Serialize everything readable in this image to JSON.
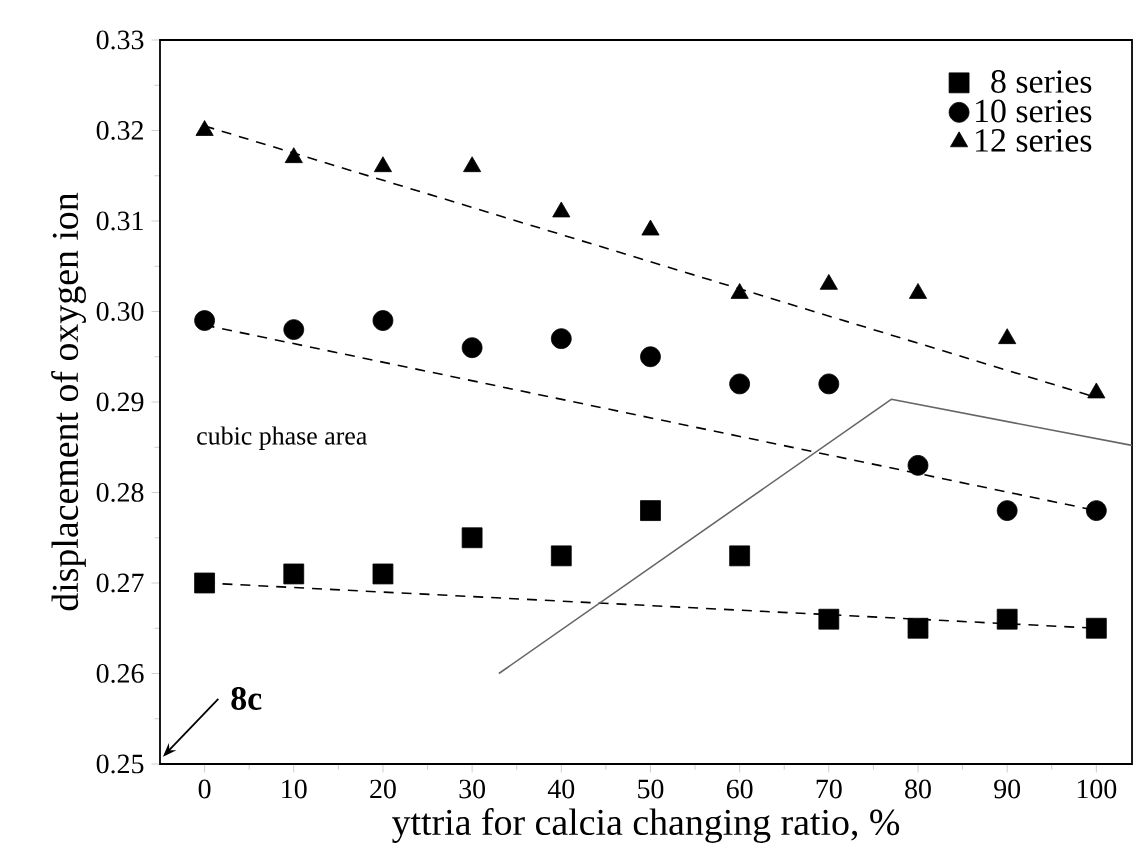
{
  "chart_data": {
    "type": "scatter",
    "xlabel": "yttria for calcia changing ratio, %",
    "ylabel": "displacement of oxygen ion",
    "xlim": [
      -5,
      104
    ],
    "ylim": [
      0.25,
      0.33
    ],
    "xticks": [
      0,
      10,
      20,
      30,
      40,
      50,
      60,
      70,
      80,
      90,
      100
    ],
    "yticks": [
      {
        "value": 0.25,
        "label": "0.25"
      },
      {
        "value": 0.26,
        "label": "0.26"
      },
      {
        "value": 0.27,
        "label": "0.27"
      },
      {
        "value": 0.28,
        "label": "0.28"
      },
      {
        "value": 0.29,
        "label": "0.29"
      },
      {
        "value": 0.3,
        "label": "0.30"
      },
      {
        "value": 0.31,
        "label": "0.31"
      },
      {
        "value": 0.32,
        "label": "0.32"
      },
      {
        "value": 0.33,
        "label": "0.33"
      }
    ],
    "legend": "top right",
    "grid": false,
    "annotations": [
      "cubic phase area",
      "8c"
    ],
    "series": [
      {
        "name": "8 series",
        "marker": "square",
        "color": "#000000",
        "x": [
          0,
          10,
          20,
          30,
          40,
          50,
          60,
          70,
          80,
          90,
          100
        ],
        "values": [
          0.27,
          0.271,
          0.271,
          0.275,
          0.273,
          0.278,
          0.273,
          0.266,
          0.265,
          0.266,
          0.265
        ]
      },
      {
        "name": "10 series",
        "marker": "circle",
        "color": "#000000",
        "x": [
          0,
          10,
          20,
          30,
          40,
          50,
          60,
          70,
          80,
          90,
          100
        ],
        "values": [
          0.299,
          0.298,
          0.299,
          0.296,
          0.297,
          0.295,
          0.292,
          0.292,
          0.283,
          0.278,
          0.278
        ]
      },
      {
        "name": "12 series",
        "marker": "triangle",
        "color": "#000000",
        "x": [
          0,
          10,
          20,
          30,
          40,
          50,
          60,
          70,
          80,
          90,
          100
        ],
        "values": [
          0.32,
          0.317,
          0.316,
          0.316,
          0.311,
          0.309,
          0.302,
          0.303,
          0.302,
          0.297,
          0.291
        ]
      },
      {
        "type": "line",
        "line_style": "dashed",
        "color": "#000000",
        "x": [
          0,
          100
        ],
        "values": [
          0.27,
          0.265
        ]
      },
      {
        "type": "line",
        "line_style": "dashed",
        "color": "#000000",
        "x": [
          0,
          100
        ],
        "values": [
          0.2985,
          0.278
        ]
      },
      {
        "type": "line",
        "line_style": "dashed",
        "color": "#000000",
        "x": [
          0,
          100
        ],
        "values": [
          0.3205,
          0.2905
        ]
      },
      {
        "type": "line",
        "line_style": "solid",
        "color": "#666666",
        "x": [
          33,
          77,
          104
        ],
        "values": [
          0.26,
          0.2903,
          0.2852
        ]
      }
    ]
  }
}
